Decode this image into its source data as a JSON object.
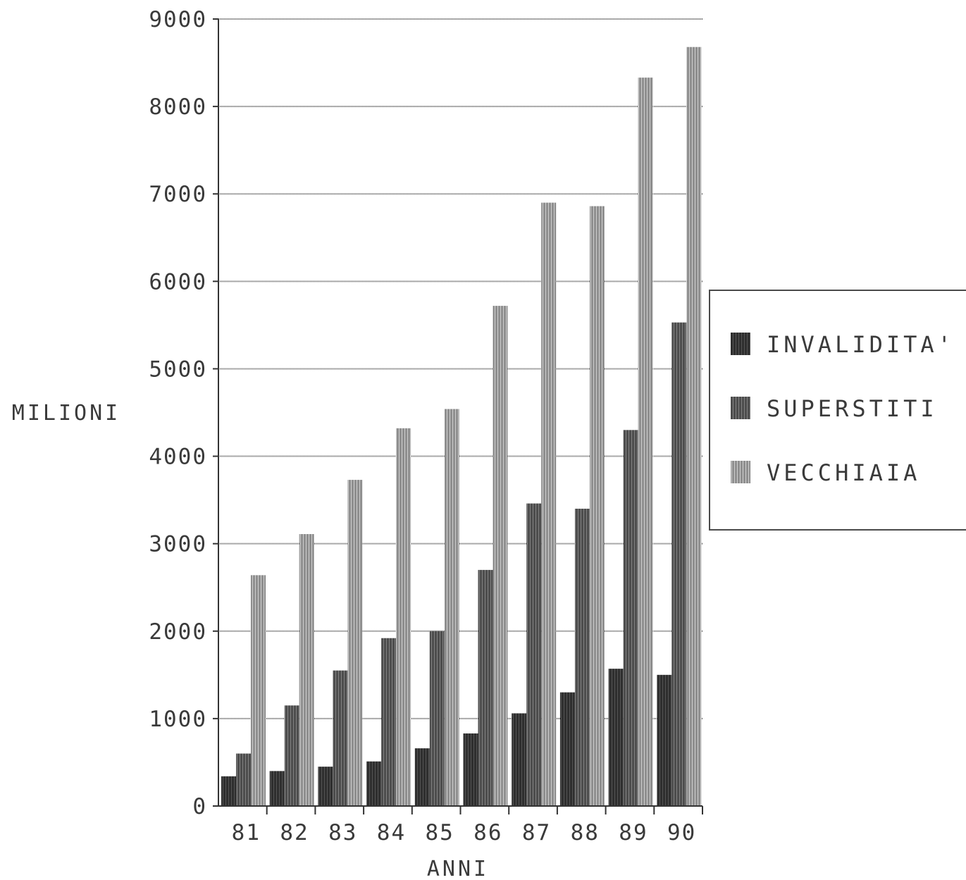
{
  "chart_data": {
    "type": "bar",
    "title": "",
    "xlabel": "ANNI",
    "ylabel": "MILIONI",
    "ylim": [
      0,
      9000
    ],
    "yticks": [
      "0",
      "1000",
      "2000",
      "3000",
      "4000",
      "5000",
      "6000",
      "7000",
      "8000",
      "9000"
    ],
    "grid": true,
    "legend_position": "right",
    "categories": [
      "81",
      "82",
      "83",
      "84",
      "85",
      "86",
      "87",
      "88",
      "89",
      "90"
    ],
    "series": [
      {
        "name": "INVALIDITA'",
        "color": "#2a2a2a",
        "values": [
          340,
          400,
          450,
          510,
          660,
          830,
          1060,
          1300,
          1570,
          1500
        ]
      },
      {
        "name": "SUPERSTITI",
        "color": "#555555",
        "values": [
          600,
          1150,
          1550,
          1920,
          2000,
          2700,
          3460,
          3400,
          4300,
          5530
        ]
      },
      {
        "name": "VECCHIAIA",
        "color": "#9a9a9a",
        "values": [
          2640,
          3110,
          3730,
          4320,
          4540,
          5720,
          6900,
          6860,
          8330,
          8680
        ]
      }
    ]
  }
}
